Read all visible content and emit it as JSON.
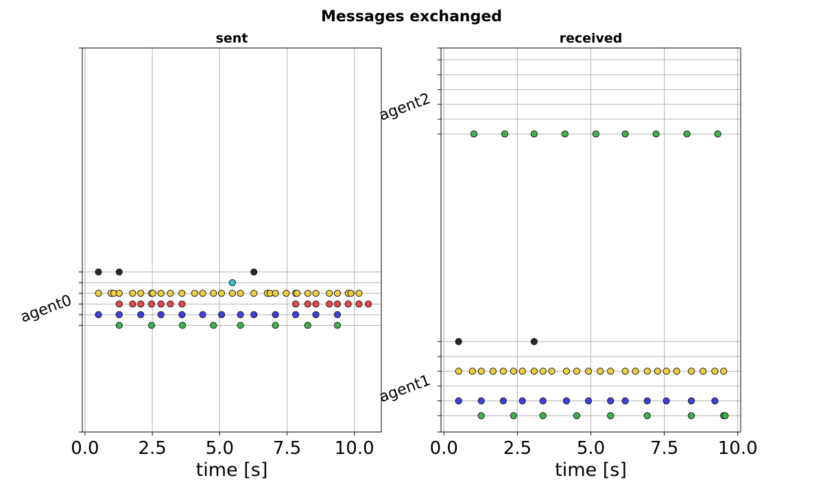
{
  "title": "Messages exchanged",
  "chart_data": [
    {
      "type": "scatter",
      "title": "sent",
      "xlabel": "time [s]",
      "xlim": [
        -0.1,
        11.0
      ],
      "xticks": [
        "0.0",
        "2.5",
        "5.0",
        "7.5",
        "10.0"
      ],
      "xtick_values": [
        0,
        2.5,
        5,
        7.5,
        10
      ],
      "grid": true,
      "ylim": [
        -10,
        26
      ],
      "rows": [
        0,
        1,
        2,
        3,
        4,
        5
      ],
      "group_labels": [
        {
          "label": "agent0",
          "at": 2.5
        }
      ],
      "series": [
        {
          "row": 0,
          "color": "#3cb44b",
          "x": [
            1.27,
            2.47,
            3.62,
            4.77,
            5.77,
            7.07,
            8.27,
            9.37
          ]
        },
        {
          "row": 1,
          "color": "#4040e0",
          "x": [
            0.5,
            1.27,
            2.07,
            2.82,
            3.6,
            4.37,
            5.07,
            5.77,
            6.27,
            7.07,
            7.82,
            8.57,
            9.37
          ]
        },
        {
          "row": 2,
          "color": "#e8474a",
          "x": [
            1.27,
            1.77,
            2.07,
            2.47,
            2.82,
            3.17,
            3.6,
            7.82,
            8.27,
            8.57,
            9.07,
            9.37,
            9.77,
            10.17,
            10.52
          ]
        },
        {
          "row": 3,
          "color": "#f0d040",
          "x": [
            0.5,
            0.97,
            1.07,
            1.27,
            1.77,
            2.07,
            2.47,
            2.52,
            2.82,
            3.17,
            3.6,
            4.07,
            4.37,
            4.77,
            5.07,
            5.47,
            5.77,
            6.27,
            6.77,
            6.87,
            7.07,
            7.47,
            7.82,
            7.87,
            8.27,
            8.57,
            9.07,
            9.37,
            9.77,
            9.87,
            10.17
          ]
        },
        {
          "row": 4,
          "color": "#40c0d0",
          "x": [
            5.47
          ]
        },
        {
          "row": 5,
          "color": "#2a2a2a",
          "x": [
            0.5,
            1.27,
            6.27
          ]
        }
      ]
    },
    {
      "type": "scatter",
      "title": "received",
      "xlabel": "time [s]",
      "xlim": [
        -0.1,
        10.1
      ],
      "xticks": [
        "0.0",
        "2.5",
        "5.0",
        "7.5",
        "10.0"
      ],
      "xtick_values": [
        0,
        2.5,
        5,
        7.5,
        10
      ],
      "grid": true,
      "ylim": [
        -1.1,
        24.8
      ],
      "rows": [
        0,
        1,
        2,
        3,
        4,
        5,
        19,
        20,
        21,
        22,
        23,
        24
      ],
      "group_labels": [
        {
          "label": "agent1",
          "at": 2.5
        },
        {
          "label": "agent2",
          "at": 21.5
        }
      ],
      "series": [
        {
          "row": 0,
          "color": "#3cb44b",
          "x": [
            1.27,
            2.37,
            3.37,
            4.52,
            5.67,
            6.92,
            8.42,
            9.52,
            9.57
          ]
        },
        {
          "row": 1,
          "color": "#4040e0",
          "x": [
            0.5,
            1.27,
            2.02,
            2.67,
            3.37,
            4.17,
            4.92,
            5.67,
            6.17,
            6.92,
            7.57,
            8.42,
            9.22
          ]
        },
        {
          "row": 3,
          "color": "#f0d040",
          "x": [
            0.5,
            0.97,
            1.27,
            1.67,
            2.02,
            2.37,
            2.67,
            3.07,
            3.37,
            3.67,
            4.17,
            4.52,
            4.92,
            5.32,
            5.67,
            6.17,
            6.52,
            6.92,
            7.27,
            7.57,
            7.92,
            8.42,
            8.82,
            9.22,
            9.52
          ]
        },
        {
          "row": 5,
          "color": "#2a2a2a",
          "x": [
            0.5,
            3.07
          ]
        },
        {
          "row": 19,
          "color": "#3cb44b",
          "x": [
            1.02,
            2.07,
            3.07,
            4.12,
            5.17,
            6.17,
            7.22,
            8.27,
            9.32
          ]
        }
      ]
    }
  ]
}
